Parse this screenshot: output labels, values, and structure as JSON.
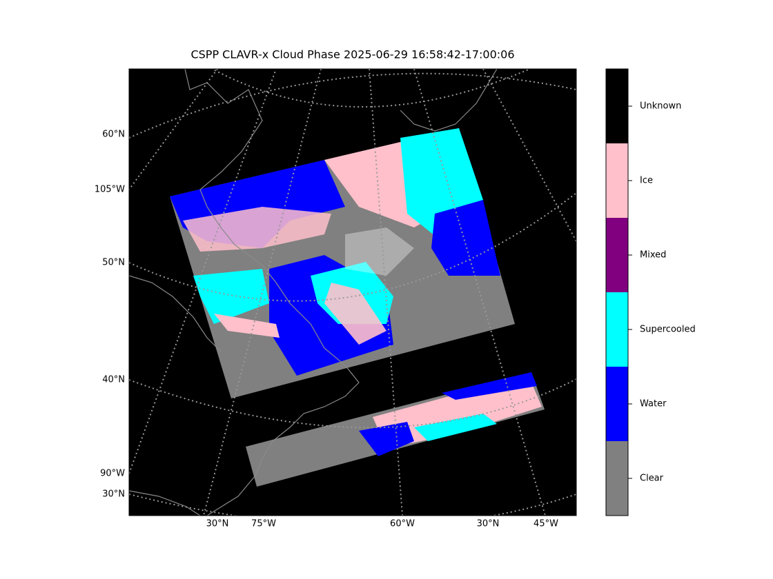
{
  "title": "CSPP CLAVR-x Cloud Phase 2025-06-29 16:58:42-17:00:06",
  "map": {
    "left_labels": [
      "60°N",
      "105°W",
      "50°N",
      "40°N",
      "90°W",
      "30°N"
    ],
    "bottom_labels": [
      "30°N",
      "75°W",
      "60°W",
      "30°N",
      "45°W"
    ]
  },
  "colorbar": {
    "classes": [
      {
        "label": "Unknown",
        "color": "#000000"
      },
      {
        "label": "Ice",
        "color": "#ffc0cb"
      },
      {
        "label": "Mixed",
        "color": "#800080"
      },
      {
        "label": "Supercooled",
        "color": "#00ffff"
      },
      {
        "label": "Water",
        "color": "#0000ff"
      },
      {
        "label": "Clear",
        "color": "#808080"
      }
    ]
  }
}
